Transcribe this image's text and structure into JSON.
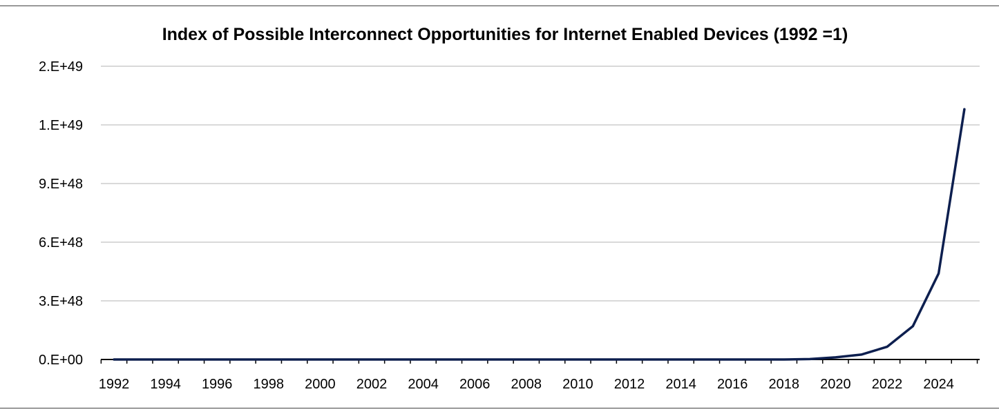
{
  "chart_data": {
    "type": "line",
    "title": "Index of Possible Interconnect Opportunities for Internet Enabled Devices (1992 =1)",
    "xlabel": "",
    "ylabel": "",
    "ylim": [
      0,
      1.5e+49
    ],
    "y_ticks": [
      0,
      3e+48,
      6e+48,
      9e+48,
      1.2e+49,
      1.5e+49
    ],
    "y_tick_labels": [
      "0.E+00",
      "3.E+48",
      "6.E+48",
      "9.E+48",
      "1.E+49",
      "2.E+49"
    ],
    "x_range": [
      1992,
      2025
    ],
    "x_tick_labels": [
      "1992",
      "1994",
      "1996",
      "1998",
      "2000",
      "2002",
      "2004",
      "2006",
      "2008",
      "2010",
      "2012",
      "2014",
      "2016",
      "2018",
      "2020",
      "2022",
      "2024"
    ],
    "grid": true,
    "legend": "none",
    "series_color": "#0d1f4f",
    "series": [
      {
        "x": [
          1992,
          1993,
          1994,
          1995,
          1996,
          1997,
          1998,
          1999,
          2000,
          2001,
          2002,
          2003,
          2004,
          2005,
          2006,
          2007,
          2008,
          2009,
          2010,
          2011,
          2012,
          2013,
          2014,
          2015,
          2016,
          2017,
          2018,
          2019,
          2020,
          2021,
          2022,
          2023,
          2024,
          2025
        ],
        "values": [
          1,
          0,
          0,
          0,
          0,
          0,
          0,
          0,
          0,
          0,
          0,
          0,
          0,
          0,
          0,
          0,
          0,
          0,
          0,
          0,
          0,
          0,
          0,
          0,
          0,
          0,
          0,
          2e+46,
          1.1e+47,
          2.5e+47,
          6.5e+47,
          1.7e+48,
          4.4e+48,
          1.28e+49
        ]
      }
    ]
  }
}
